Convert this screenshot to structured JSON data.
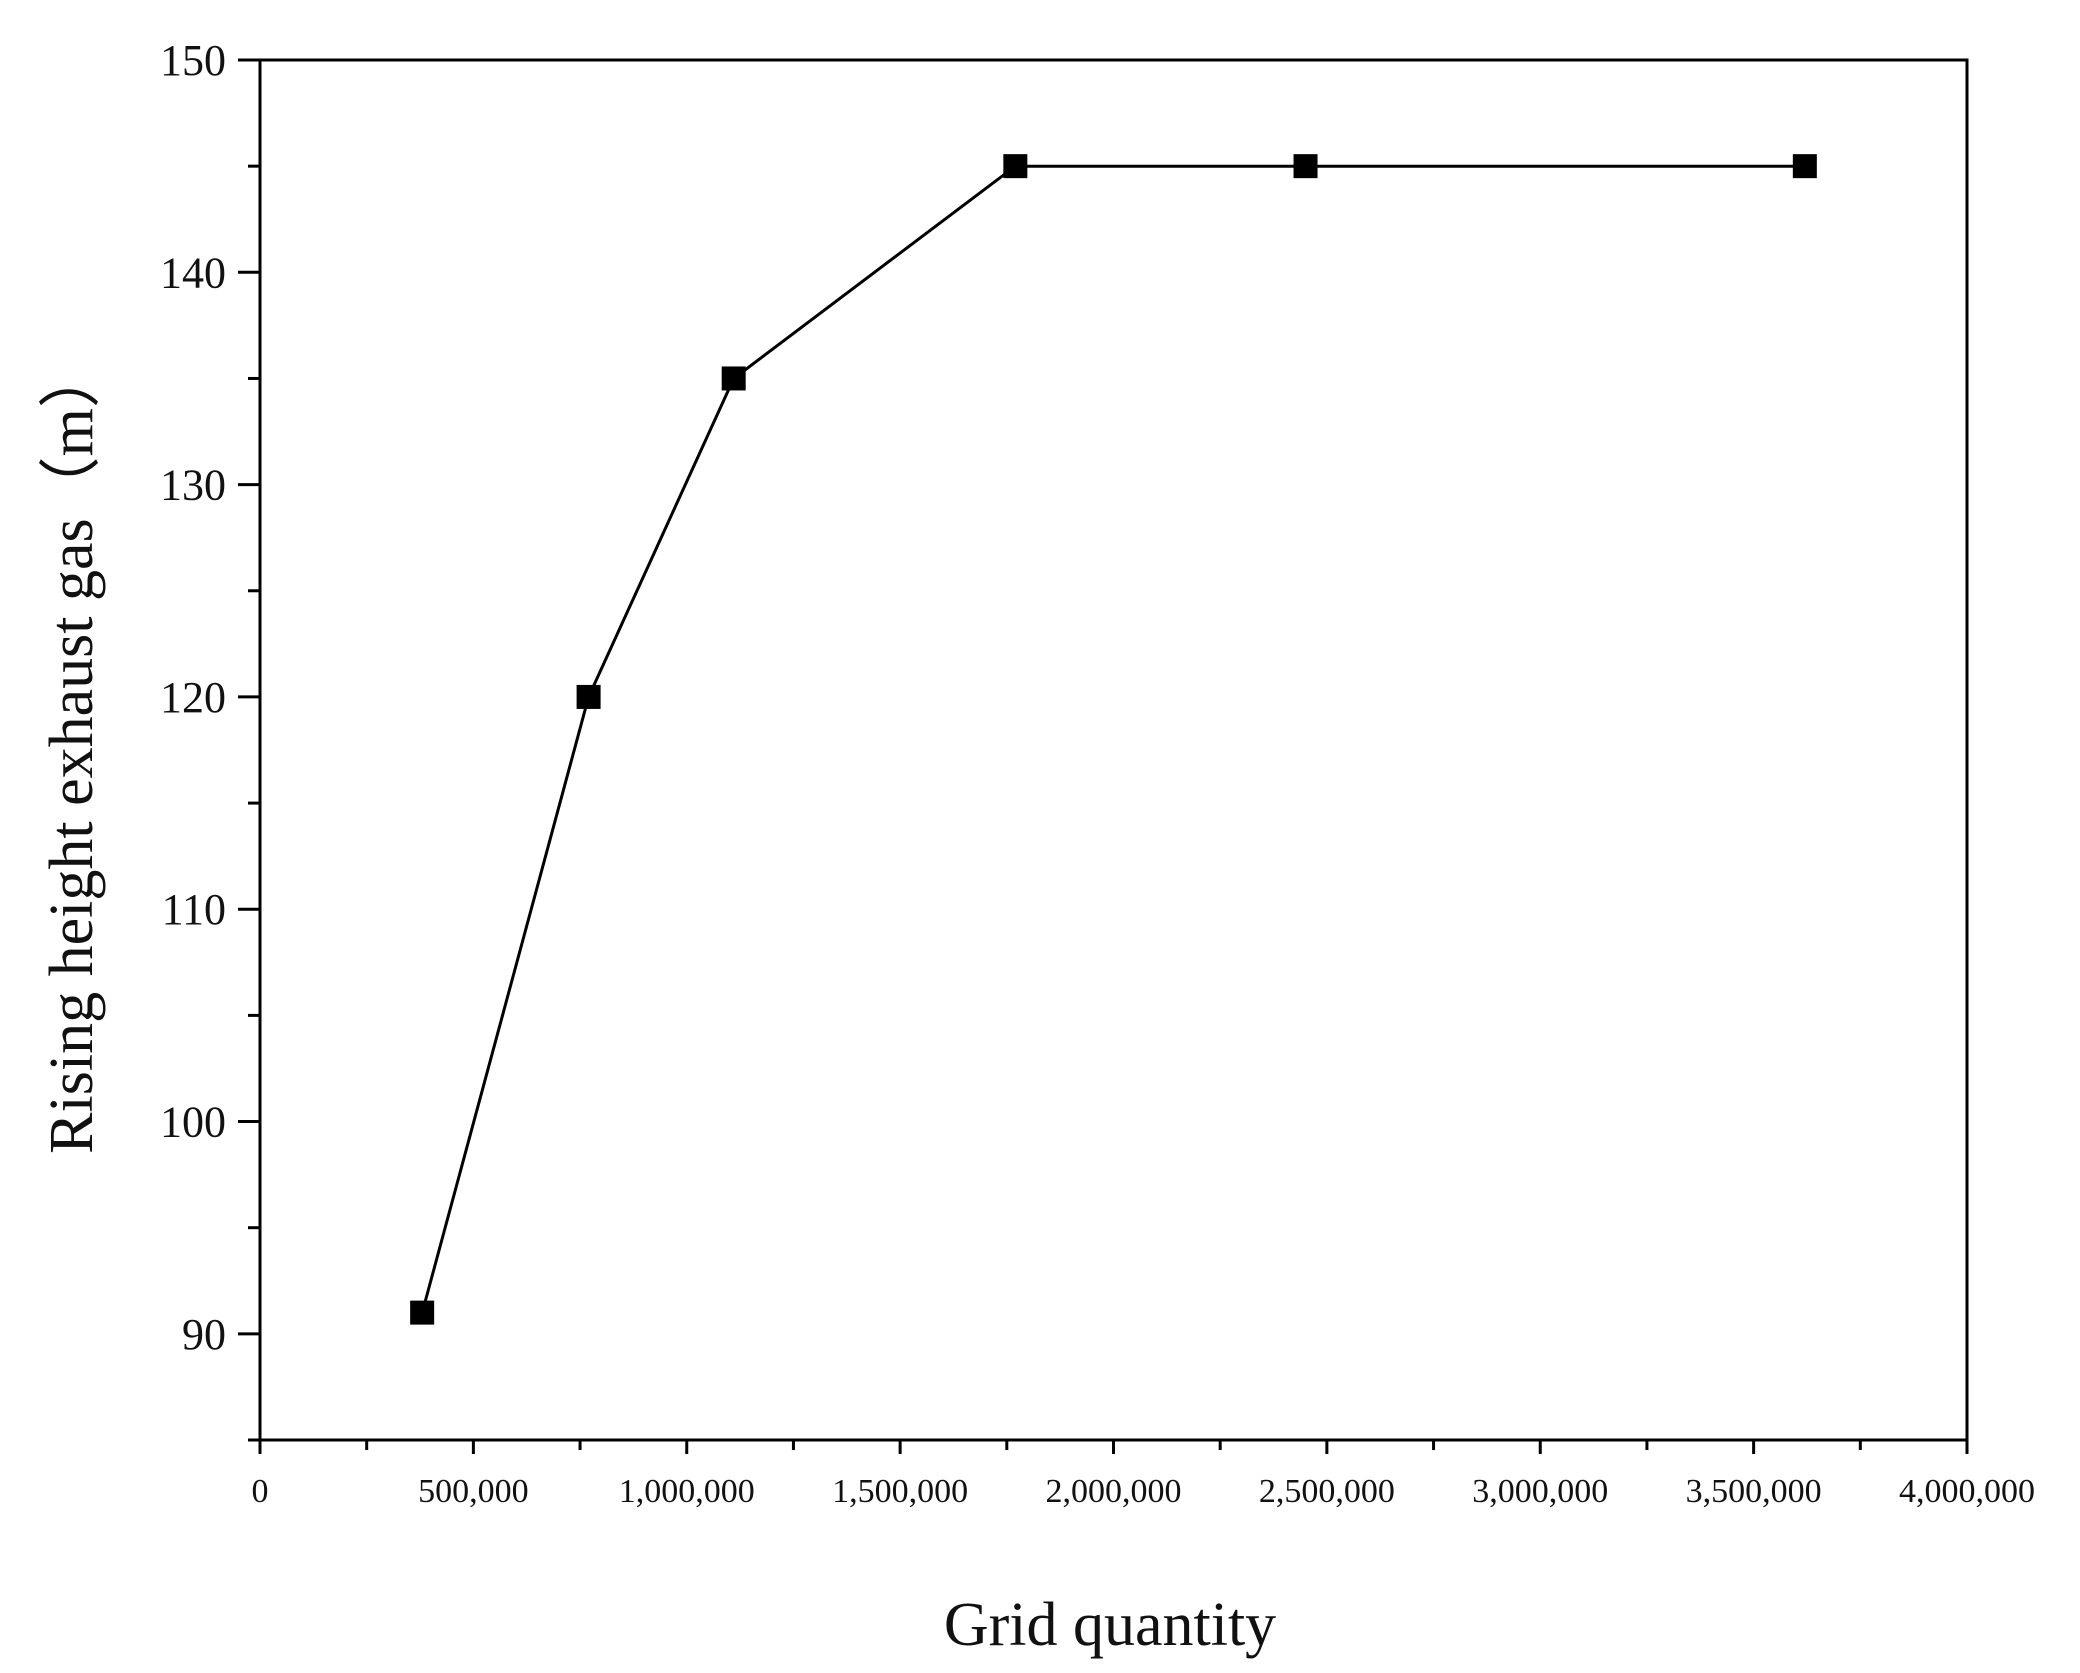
{
  "chart_data": {
    "type": "line",
    "title": "",
    "xlabel": "Grid quantity",
    "ylabel": "Rising height exhaust gas（m）",
    "xlim": [
      0,
      4000000
    ],
    "ylim": [
      85,
      150
    ],
    "x_ticks": [
      0,
      500000,
      1000000,
      1500000,
      2000000,
      2500000,
      3000000,
      3500000,
      4000000
    ],
    "x_tick_labels": [
      "0",
      "500,000",
      "1,000,000",
      "1,500,000",
      "2,000,000",
      "2,500,000",
      "3,000,000",
      "3,500,000",
      "4,000,000"
    ],
    "y_ticks": [
      90,
      100,
      110,
      120,
      130,
      140,
      150
    ],
    "y_tick_labels": [
      "90",
      "100",
      "110",
      "120",
      "130",
      "140",
      "150"
    ],
    "grid": false,
    "legend": "none",
    "marker": "square",
    "line_color": "#000000",
    "series": [
      {
        "x": [
          380000,
          770000,
          1110000,
          1770000,
          2450000,
          3620000
        ],
        "y": [
          91,
          120,
          135,
          145,
          145,
          145
        ]
      }
    ]
  }
}
